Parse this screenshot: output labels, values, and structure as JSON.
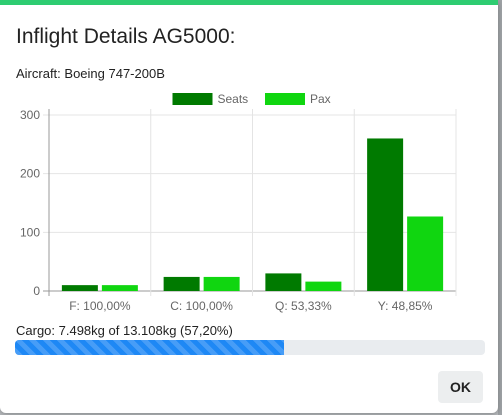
{
  "modal": {
    "title": "Inflight Details AG5000:",
    "aircraft": "Aircraft: Boeing 747-200B",
    "cargo_text": "Cargo: 7.498kg of 13.108kg (57,20%)",
    "cargo_fraction": 0.572,
    "ok_label": "OK"
  },
  "colors": {
    "header_accent": "#2ecc71",
    "seats": "#007a00",
    "pax": "#10d610",
    "progress": "#1e88f5"
  },
  "chart_data": {
    "type": "bar",
    "categories": [
      "F: 100,00%",
      "C: 100,00%",
      "Q: 53,33%",
      "Y: 48,85%"
    ],
    "series": [
      {
        "name": "Seats",
        "color": "#007a00",
        "values": [
          10,
          24,
          30,
          260
        ]
      },
      {
        "name": "Pax",
        "color": "#10d610",
        "values": [
          10,
          24,
          16,
          127
        ]
      }
    ],
    "ylim": [
      0,
      300
    ],
    "yticks": [
      0,
      100,
      200,
      300
    ],
    "grid": true,
    "legend_position": "top-center"
  }
}
